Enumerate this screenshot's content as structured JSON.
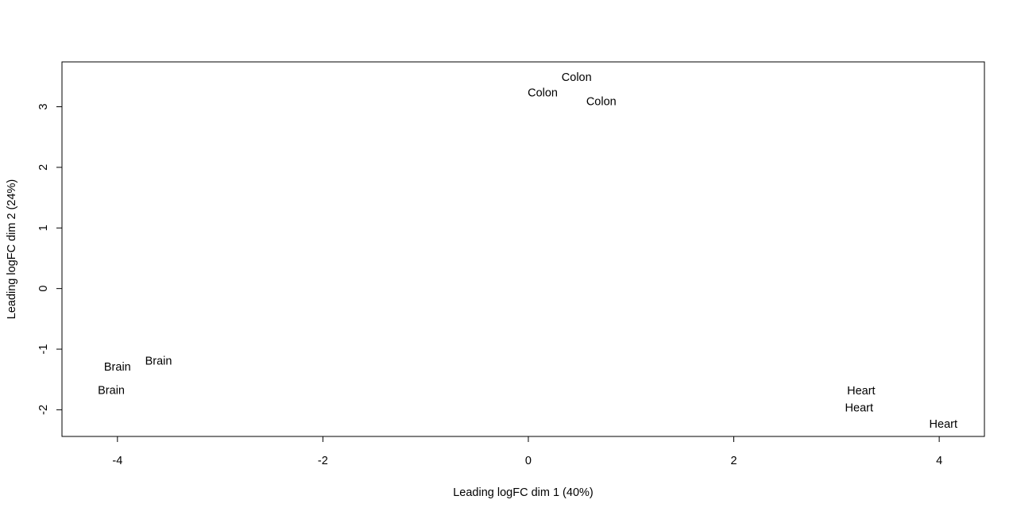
{
  "chart_data": {
    "type": "scatter",
    "title": "",
    "xlabel": "Leading logFC dim 1 (40%)",
    "ylabel": "Leading logFC dim 2 (24%)",
    "xlim": [
      -4.54,
      4.44
    ],
    "ylim": [
      -2.44,
      3.74
    ],
    "x_ticks": [
      -4,
      -2,
      0,
      2,
      4
    ],
    "y_ticks": [
      -2,
      -1,
      0,
      1,
      2,
      3
    ],
    "x_tick_labels": [
      "-4",
      "-2",
      "0",
      "2",
      "4"
    ],
    "y_tick_labels": [
      "-2",
      "-1",
      "0",
      "1",
      "2",
      "3"
    ],
    "grid": false,
    "legend": "none",
    "point_style": "text-labels",
    "points": [
      {
        "label": "Colon",
        "x": 0.47,
        "y": 3.49
      },
      {
        "label": "Colon",
        "x": 0.14,
        "y": 3.24
      },
      {
        "label": "Colon",
        "x": 0.71,
        "y": 3.09
      },
      {
        "label": "Brain",
        "x": -3.6,
        "y": -1.19
      },
      {
        "label": "Brain",
        "x": -4.0,
        "y": -1.29
      },
      {
        "label": "Brain",
        "x": -4.06,
        "y": -1.67
      },
      {
        "label": "Heart",
        "x": 3.24,
        "y": -1.68
      },
      {
        "label": "Heart",
        "x": 3.22,
        "y": -1.96
      },
      {
        "label": "Heart",
        "x": 4.04,
        "y": -2.23
      }
    ]
  }
}
